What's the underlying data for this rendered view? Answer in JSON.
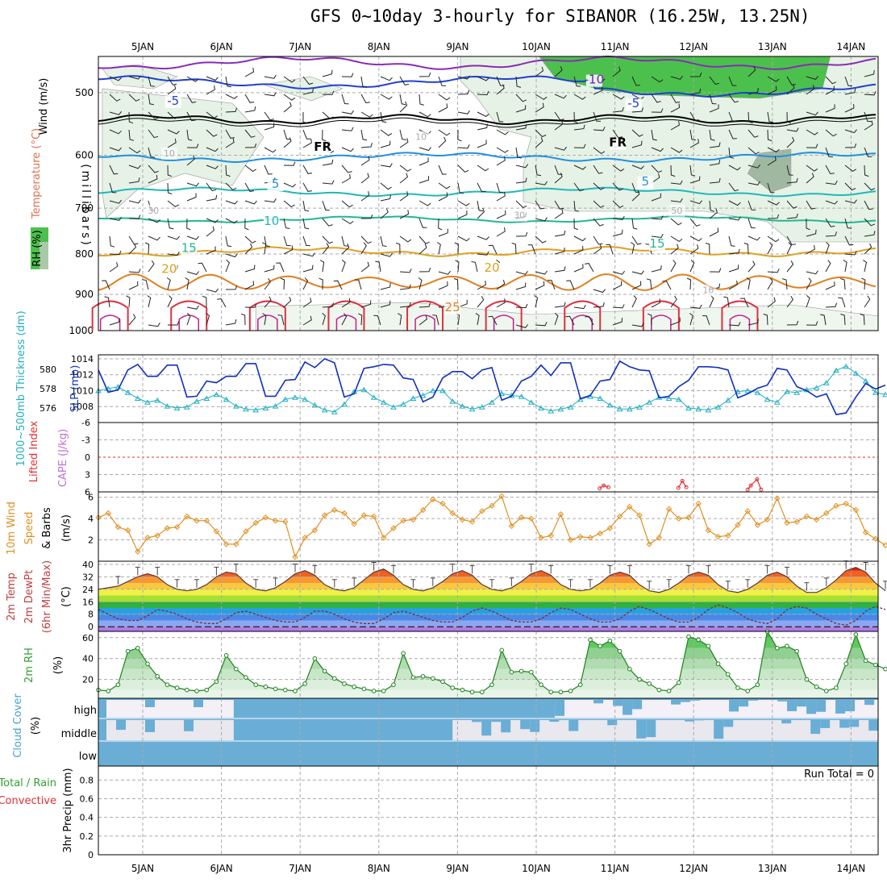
{
  "title": "GFS 0~10day 3-hourly for SIBANOR (16.25W, 13.25N)",
  "colors": {
    "grid": "#aaaaaa",
    "slp": "#1030c0",
    "thickness": "#20b0c0",
    "wind": "#e09020",
    "rh": "#30a030",
    "cloud": "#6aaed6",
    "cloud_clear": "#f4f0f8",
    "cape": "#c070d0",
    "li": "#e03030"
  },
  "chart_data": [
    {
      "type": "contour",
      "name": "upper-air",
      "labels": {
        "wind": "Wind (m/s)",
        "temperature": "Temperature (°C)",
        "rh": "RH (%)",
        "ylabel": "(millibars)"
      },
      "x": {
        "ticks": [
          "5JAN",
          "6JAN",
          "7JAN",
          "8JAN",
          "9JAN",
          "10JAN",
          "11JAN",
          "12JAN",
          "13JAN",
          "14JAN"
        ]
      },
      "y": {
        "ticks": [
          500,
          600,
          700,
          800,
          900,
          1000
        ],
        "lim": [
          1000,
          450
        ],
        "scale": "log"
      },
      "contour_labels": [
        {
          "text": "-10",
          "day": 10.8,
          "p": 487,
          "color": "#7020b0"
        },
        {
          "text": "-5",
          "day": 5.45,
          "p": 518,
          "color": "#2040d0"
        },
        {
          "text": "-5",
          "day": 11.3,
          "p": 522,
          "color": "#2040d0"
        },
        {
          "text": "FR",
          "day": 7.35,
          "p": 592,
          "color": "#000000"
        },
        {
          "text": "FR",
          "day": 11.1,
          "p": 585,
          "color": "#000000"
        },
        {
          "text": "5",
          "day": 6.75,
          "p": 660,
          "color": "#2090e0"
        },
        {
          "text": "5",
          "day": 11.45,
          "p": 655,
          "color": "#2090e0"
        },
        {
          "text": "10",
          "day": 6.7,
          "p": 735,
          "color": "#20b8b8"
        },
        {
          "text": "15",
          "day": 5.65,
          "p": 795,
          "color": "#20b890"
        },
        {
          "text": "15",
          "day": 11.6,
          "p": 785,
          "color": "#20b890"
        },
        {
          "text": "20",
          "day": 5.4,
          "p": 845,
          "color": "#e0a020"
        },
        {
          "text": "20",
          "day": 9.5,
          "p": 842,
          "color": "#e0a020"
        },
        {
          "text": "25",
          "day": 9.0,
          "p": 945,
          "color": "#e08020"
        },
        {
          "text": "10",
          "day": 5.4,
          "p": 602,
          "color": "#aaaaaa"
        },
        {
          "text": "10",
          "day": 8.6,
          "p": 574,
          "color": "#aaaaaa"
        },
        {
          "text": "30",
          "day": 5.2,
          "p": 711,
          "color": "#aaaaaa"
        },
        {
          "text": "30",
          "day": 9.85,
          "p": 721,
          "color": "#aaaaaa"
        },
        {
          "text": "50",
          "day": 11.85,
          "p": 711,
          "color": "#aaaaaa"
        },
        {
          "text": "10",
          "day": 12.25,
          "p": 897,
          "color": "#aaaaaa"
        }
      ]
    },
    {
      "type": "line",
      "name": "slp-thickness",
      "labels": {
        "left": "1000~500mb Thickness (dm)",
        "right": "SLP (mb)"
      },
      "left_axis": {
        "ticks": [
          576,
          578,
          580
        ],
        "lim": [
          574.5,
          581.5
        ]
      },
      "right_axis": {
        "ticks": [
          1008,
          1010,
          1012,
          1014
        ],
        "lim": [
          1006,
          1014.5
        ]
      },
      "x_start_day": 4.5,
      "step_days": 0.125,
      "series": [
        {
          "name": "SLP",
          "axis": "right",
          "values": [
            1012.6,
            1009.8,
            1010.1,
            1012.6,
            1013.3,
            1011.8,
            1011.8,
            1013.2,
            1013.2,
            1009.2,
            1009.3,
            1011.2,
            1011.0,
            1011.8,
            1011.8,
            1013.4,
            1013.4,
            1009.3,
            1009.3,
            1011.3,
            1011.4,
            1013.6,
            1012.9,
            1014.0,
            1013.5,
            1009.2,
            1009.6,
            1012.8,
            1013.0,
            1013.3,
            1013.2,
            1011.6,
            1011.4,
            1008.6,
            1009.2,
            1011.6,
            1012.4,
            1012.4,
            1011.5,
            1012.6,
            1012.9,
            1008.8,
            1009.3,
            1011.2,
            1011.8,
            1013.2,
            1011.9,
            1013.5,
            1013.5,
            1009.0,
            1009.4,
            1011.2,
            1011.4,
            1013.7,
            1013.0,
            1012.6,
            1012.5,
            1009.1,
            1009.3,
            1010.5,
            1011.3,
            1013.0,
            1013.0,
            1012.9,
            1012.6,
            1009.1,
            1009.6,
            1010.3,
            1010.7,
            1012.8,
            1012.6,
            1010.5,
            1010.0,
            1009.2,
            1009.6,
            1007.0,
            1007.2,
            1009.2,
            1010.9,
            1010.2,
            1010.7
          ]
        },
        {
          "name": "Thickness",
          "axis": "left",
          "values": [
            577.8,
            578.0,
            578.2,
            577.6,
            577.0,
            576.6,
            576.8,
            576.2,
            576.0,
            576.1,
            576.7,
            577.0,
            577.4,
            576.9,
            576.2,
            575.9,
            575.8,
            576.0,
            576.2,
            576.9,
            577.1,
            576.9,
            576.3,
            575.8,
            575.6,
            576.4,
            577.7,
            577.9,
            577.1,
            576.6,
            576.1,
            576.4,
            577.0,
            577.3,
            577.8,
            577.8,
            576.7,
            576.2,
            575.9,
            576.1,
            576.6,
            577.5,
            577.3,
            577.2,
            576.6,
            576.0,
            575.7,
            575.9,
            576.1,
            576.9,
            577.2,
            577.0,
            576.3,
            575.9,
            575.9,
            576.1,
            576.6,
            577.1,
            577.0,
            576.9,
            576.0,
            575.9,
            575.8,
            576.1,
            576.8,
            577.7,
            577.8,
            577.6,
            576.9,
            576.6,
            577.7,
            577.6,
            577.9,
            578.1,
            578.6,
            579.9,
            580.3,
            579.6,
            578.8,
            577.6,
            577.4
          ]
        }
      ]
    },
    {
      "type": "line",
      "name": "cape-lifted-index",
      "labels": {
        "left": "Lifted Index",
        "right": "CAPE (J/kg)"
      },
      "axis": {
        "ticks": [
          "-6",
          "-3",
          "0",
          "3",
          "6"
        ],
        "lim": [
          -6,
          6
        ],
        "inverted": true
      },
      "series": [
        {
          "name": "Lifted Index",
          "points": [
            [
              10.87,
              5.4
            ],
            [
              10.92,
              4.9
            ],
            [
              10.98,
              5.2
            ],
            [
              11.87,
              5.3
            ],
            [
              11.92,
              4.1
            ],
            [
              11.97,
              5.2
            ],
            [
              12.75,
              5.6
            ],
            [
              12.79,
              4.9
            ],
            [
              12.87,
              3.8
            ],
            [
              12.92,
              5.6
            ]
          ]
        }
      ]
    },
    {
      "type": "line",
      "name": "10m-wind",
      "labels": {
        "left": "10m Wind Speed & Barbs",
        "unit": "(m/s)"
      },
      "axis": {
        "ticks": [
          2,
          4,
          6
        ],
        "lim": [
          0,
          6.5
        ]
      },
      "x_start_day": 4.5,
      "step_days": 0.125,
      "series": [
        {
          "name": "Wind speed",
          "values": [
            4.1,
            4.5,
            3.2,
            2.9,
            0.9,
            2.2,
            2.4,
            3.1,
            3.2,
            4.2,
            3.8,
            3.8,
            2.8,
            1.6,
            1.6,
            2.8,
            3.6,
            4.1,
            3.8,
            3.7,
            0.4,
            2.2,
            2.9,
            4.3,
            4.8,
            4.5,
            3.5,
            4.3,
            4.2,
            2.2,
            3.1,
            3.8,
            3.9,
            4.8,
            5.8,
            5.4,
            4.5,
            3.9,
            3.7,
            4.7,
            5.2,
            6.1,
            3.3,
            4.1,
            4.0,
            2.2,
            2.4,
            4.4,
            2.0,
            2.3,
            2.2,
            2.6,
            3.1,
            4.2,
            5.1,
            4.3,
            1.6,
            2.2,
            4.9,
            4.0,
            4.1,
            5.4,
            2.9,
            2.3,
            2.4,
            3.4,
            4.7,
            3.4,
            3.9,
            5.9,
            3.6,
            3.7,
            4.2,
            3.9,
            4.5,
            5.2,
            5.4,
            4.8,
            2.7,
            2.1,
            1.5
          ]
        }
      ]
    },
    {
      "type": "area",
      "name": "2m-temp-dewpt",
      "labels": {
        "left": "2m Temp 2m DewPt (6hr Min/Max)",
        "unit": "(°C)"
      },
      "axis": {
        "ticks": [
          0,
          8,
          16,
          24,
          32,
          40
        ],
        "lim": [
          -3,
          42
        ]
      },
      "x_start_day": 4.5,
      "step_days": 0.125,
      "series": [
        {
          "name": "2m Temp",
          "values": [
            24,
            25,
            26,
            29,
            32,
            34,
            32,
            27,
            24,
            23,
            24,
            27,
            32,
            35,
            34,
            28,
            24,
            23,
            25,
            29,
            34,
            36,
            33,
            27,
            24,
            23,
            25,
            30,
            35,
            37,
            33,
            27,
            24,
            23,
            25,
            29,
            34,
            36,
            33,
            27,
            24,
            23,
            25,
            29,
            34,
            36,
            33,
            27,
            24,
            23,
            24,
            28,
            33,
            35,
            33,
            27,
            23,
            22,
            24,
            28,
            33,
            35,
            33,
            27,
            23,
            22,
            24,
            28,
            33,
            35,
            32,
            26,
            22,
            22,
            25,
            30,
            36,
            38,
            35,
            28,
            23
          ]
        },
        {
          "name": "2m DewPt",
          "values": [
            11,
            8,
            5,
            4,
            4,
            7,
            11,
            10,
            8,
            5,
            3,
            2,
            2,
            5,
            9,
            10,
            8,
            6,
            4,
            3,
            3,
            6,
            10,
            10,
            8,
            5,
            3,
            2,
            2,
            5,
            9,
            10,
            8,
            6,
            4,
            3,
            3,
            6,
            10,
            12,
            10,
            7,
            4,
            3,
            3,
            5,
            9,
            12,
            11,
            8,
            5,
            3,
            3,
            5,
            10,
            13,
            11,
            8,
            5,
            3,
            3,
            6,
            11,
            14,
            12,
            9,
            5,
            3,
            2,
            5,
            11,
            13,
            12,
            8,
            5,
            2,
            1,
            4,
            10,
            13,
            11
          ]
        }
      ]
    },
    {
      "type": "area",
      "name": "2m-rh",
      "labels": {
        "left": "2m RH",
        "unit": "(%)"
      },
      "axis": {
        "ticks": [
          20,
          40,
          60
        ],
        "lim": [
          2,
          66
        ]
      },
      "x_start_day": 4.5,
      "step_days": 0.125,
      "series": [
        {
          "name": "2m RH",
          "values": [
            10,
            9,
            15,
            47,
            50,
            35,
            23,
            15,
            12,
            10,
            9,
            10,
            18,
            43,
            30,
            22,
            15,
            13,
            11,
            10,
            9,
            16,
            40,
            28,
            21,
            16,
            13,
            11,
            9,
            9,
            15,
            45,
            22,
            23,
            21,
            18,
            12,
            10,
            8,
            8,
            15,
            48,
            27,
            28,
            27,
            15,
            8,
            8,
            9,
            15,
            58,
            52,
            57,
            47,
            30,
            20,
            16,
            10,
            9,
            17,
            61,
            58,
            52,
            35,
            25,
            12,
            9,
            15,
            66,
            50,
            52,
            47,
            20,
            13,
            9,
            12,
            35,
            63,
            38,
            34,
            30
          ]
        }
      ]
    },
    {
      "type": "heatmap",
      "name": "cloud-cover",
      "labels": {
        "left": "Cloud Cover",
        "unit": "(%)",
        "levels": [
          "high",
          "middle",
          "low"
        ]
      }
    },
    {
      "type": "bar",
      "name": "precip",
      "labels": {
        "left_1": "Total / Rain",
        "left_2": "Convective",
        "ylabel": "3hr Precip (mm)",
        "run_total": "Run Total = 0"
      },
      "axis": {
        "ticks": [
          "0",
          "0.2",
          "0.4",
          "0.6",
          "0.8"
        ],
        "lim": [
          0,
          0.95
        ]
      },
      "values": []
    }
  ]
}
